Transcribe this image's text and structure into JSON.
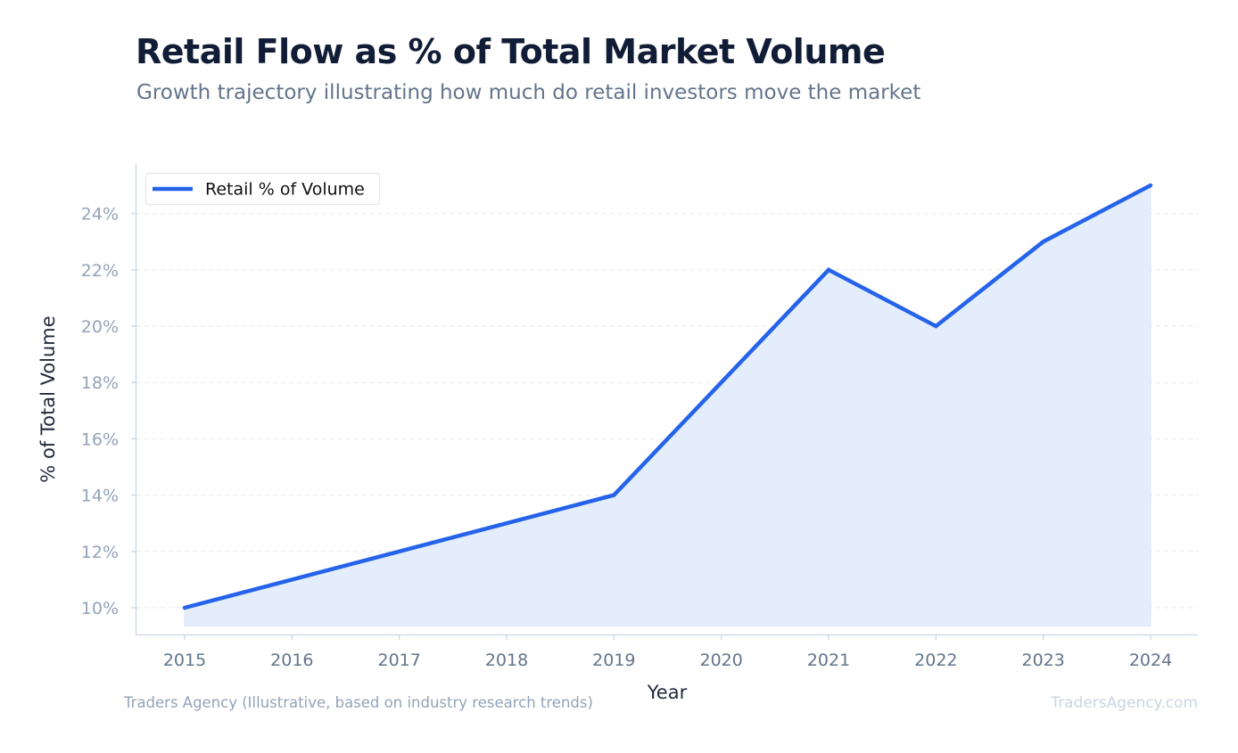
{
  "header": {
    "title": "Retail Flow as % of Total Market Volume",
    "subtitle": "Growth trajectory illustrating how much do retail investors move the market"
  },
  "footer": {
    "source": "Traders Agency (Illustrative, based on industry research trends)",
    "watermark": "TradersAgency.com"
  },
  "colors": {
    "line": "#2563eb",
    "fill": "#e4edfb",
    "grid": "#e5e7eb",
    "axis": "#cbd5e1"
  },
  "chart_data": {
    "type": "area",
    "title": "Retail Flow as % of Total Market Volume",
    "subtitle": "Growth trajectory illustrating how much do retail investors move the market",
    "xlabel": "Year",
    "ylabel": "% of Total Volume",
    "x": [
      "2015",
      "2016",
      "2017",
      "2018",
      "2019",
      "2020",
      "2021",
      "2022",
      "2023",
      "2024"
    ],
    "series": [
      {
        "name": "Retail % of Volume",
        "values": [
          10,
          11,
          12,
          13,
          14,
          18,
          22,
          20,
          23,
          25
        ]
      }
    ],
    "yticks": [
      10,
      12,
      14,
      16,
      18,
      20,
      22,
      24
    ],
    "ytick_labels": [
      "10%",
      "12%",
      "14%",
      "16%",
      "18%",
      "20%",
      "22%",
      "24%"
    ],
    "ylim": [
      9.1,
      26.1
    ],
    "grid": "horizontal dashed",
    "legend_position": "top-left"
  }
}
